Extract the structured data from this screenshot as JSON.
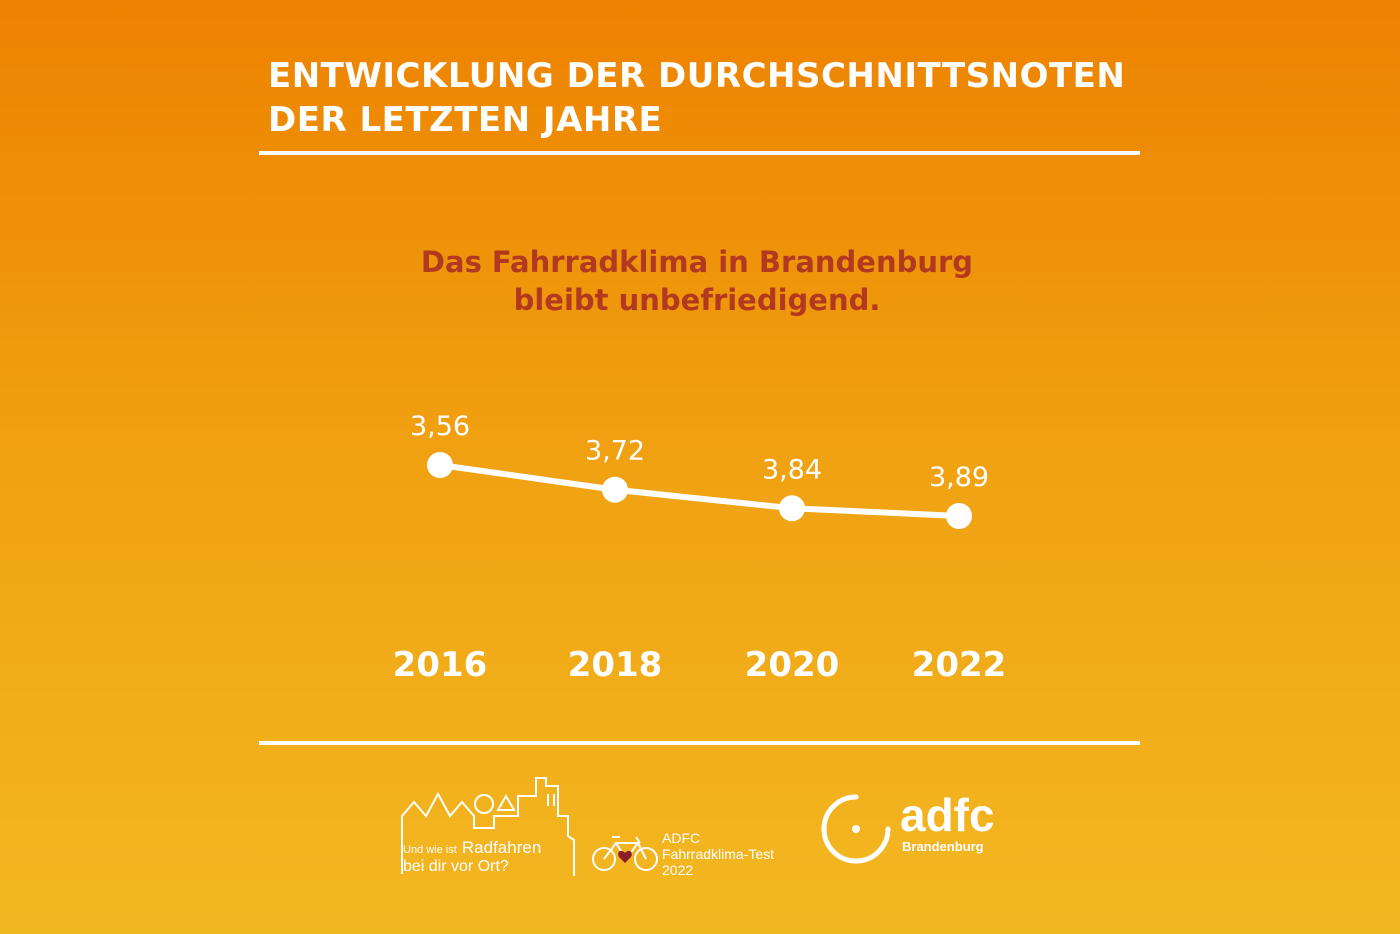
{
  "title_lines": [
    "ENTWICKLUNG DER DURCHSCHNITTSNOTEN",
    "DER LETZTEN JAHRE"
  ],
  "subtitle_lines": [
    "Das Fahrradklima in Brandenburg",
    "bleibt unbefriedigend."
  ],
  "chart_data": {
    "type": "line",
    "categories": [
      "2016",
      "2018",
      "2020",
      "2022"
    ],
    "values": [
      3.56,
      3.72,
      3.84,
      3.89
    ],
    "value_labels": [
      "3,56",
      "3,72",
      "3,84",
      "3,89"
    ],
    "ylim": [
      3.56,
      3.89
    ],
    "inverted_y": true,
    "grid": false,
    "line_color": "#ffffff",
    "marker": "circle"
  },
  "footer": {
    "campaign_small": "Und wie ist",
    "campaign_big": "Radfahren",
    "campaign_line2": "bei dir vor Ort?",
    "test_line1": "ADFC",
    "test_line2": "Fahrradklima-Test",
    "test_line3": "2022",
    "logo_text": "adfc",
    "logo_sub": "Brandenburg"
  },
  "colors": {
    "background_top": "#ee8200",
    "background_bottom": "#f2b822",
    "subtitle": "#b1391f",
    "heart": "#8a1f2a",
    "text": "#ffffff"
  }
}
